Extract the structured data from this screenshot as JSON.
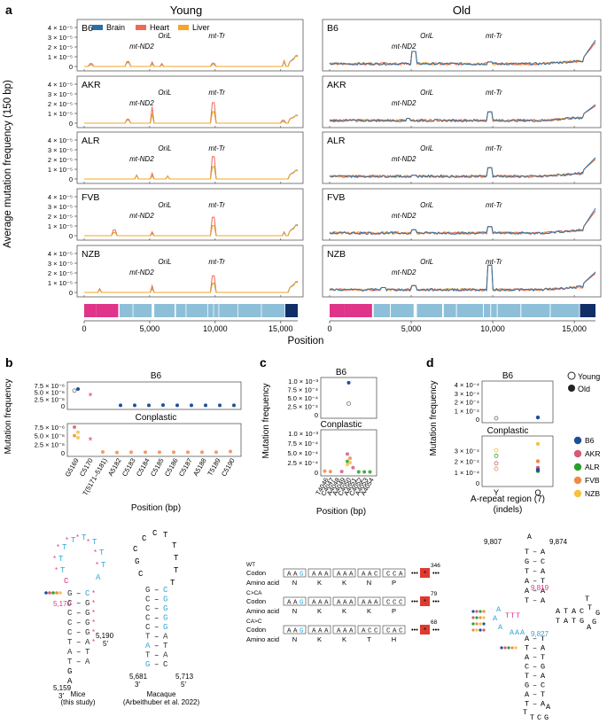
{
  "colors": {
    "brain": "#2e6fa3",
    "heart": "#ef6a55",
    "liver": "#f5a623",
    "pink": "#e0338a",
    "blue": "#8ebfd8",
    "navy": "#0f2f66",
    "cyan": "#33a6d6"
  },
  "panels": {
    "a": "a",
    "b": "b",
    "c": "c",
    "d": "d"
  },
  "panel_a": {
    "col_young": "Young",
    "col_old": "Old",
    "ylabel": "Average mutation frequency (150 bp)",
    "xlabel": "Position",
    "legend": [
      "Brain",
      "Heart",
      "Liver"
    ],
    "strains": [
      "B6",
      "AKR",
      "ALR",
      "FVB",
      "NZB"
    ],
    "landmarks": {
      "oril": "OriL",
      "mt_nd2": "mt-ND2",
      "mt_tr": "mt-Tr"
    }
  },
  "panel_b": {
    "title_top": "B6",
    "title_bottom": "Conplastic",
    "ylabel": "Mutation frequency",
    "xlabel": "Position (bp)"
  },
  "panel_c": {
    "title_top": "B6",
    "title_bottom": "Conplastic",
    "ylabel": "Mutation frequency",
    "xlabel": "Position (bp)"
  },
  "panel_d": {
    "title_top": "B6",
    "title_bottom": "Conplastic",
    "ylabel": "Mutation frequency",
    "xlabel_line1": "A-repeat region (7)",
    "xlabel_line2": "(indels)",
    "legend_young": "Young",
    "legend_old": "Old",
    "strain_legend": [
      {
        "name": "B6",
        "color": "#1f4e9a"
      },
      {
        "name": "AKR",
        "color": "#d65a76"
      },
      {
        "name": "ALR",
        "color": "#2aa02a"
      },
      {
        "name": "FVB",
        "color": "#f08a4b"
      },
      {
        "name": "NZB",
        "color": "#f5c242"
      }
    ]
  },
  "chart_data": [
    {
      "type": "line",
      "panel": "a",
      "title": "Average mutation frequency across mtDNA (Young / Old)",
      "xlabel": "Position",
      "ylabel": "Average mutation frequency (150 bp)",
      "xlim": [
        0,
        16300
      ],
      "xticks": [
        0,
        5000,
        10000,
        15000
      ],
      "xtick_labels": [
        "0",
        "5,000",
        "10,000",
        "15,000"
      ],
      "ylim": [
        0,
        4e-05
      ],
      "yticks": [
        0,
        1e-05,
        2e-05,
        3e-05,
        4e-05
      ],
      "ytick_labels": [
        "0",
        "1 × 10⁻⁵",
        "2 × 10⁻⁵",
        "3 × 10⁻⁵",
        "4 × 10⁻⁵"
      ],
      "series_names": [
        "Brain",
        "Heart",
        "Liver"
      ],
      "peaks": {
        "young": {
          "B6": [
            [
              500,
              0.3
            ],
            [
              3300,
              0.5
            ],
            [
              5180,
              0.45
            ],
            [
              5900,
              0.3
            ],
            [
              9830,
              0.35
            ],
            [
              15300,
              0.6
            ],
            [
              16150,
              1.1
            ]
          ],
          "AKR": [
            [
              3300,
              0.4
            ],
            [
              5180,
              1.7
            ],
            [
              9830,
              2.1
            ],
            [
              15200,
              0.3
            ],
            [
              16150,
              0.8
            ]
          ],
          "ALR": [
            [
              4000,
              0.4
            ],
            [
              5180,
              0.6
            ],
            [
              6400,
              0.3
            ],
            [
              9830,
              2.3
            ],
            [
              16150,
              0.9
            ]
          ],
          "FVB": [
            [
              2300,
              0.6
            ],
            [
              5180,
              0.4
            ],
            [
              9830,
              1.9
            ],
            [
              15300,
              0.4
            ],
            [
              16150,
              1.1
            ]
          ],
          "NZB": [
            [
              1200,
              0.4
            ],
            [
              5180,
              0.7
            ],
            [
              9830,
              1.7
            ],
            [
              16150,
              1.1
            ]
          ]
        },
        "old": {
          "B6": [
            [
              1000,
              0.4
            ],
            [
              5180,
              2.0
            ],
            [
              9830,
              0.6
            ],
            [
              14800,
              0.5
            ],
            [
              16150,
              2.1
            ]
          ],
          "AKR": [
            [
              4800,
              0.5
            ],
            [
              9830,
              1.5
            ],
            [
              14500,
              0.4
            ],
            [
              16150,
              1.3
            ]
          ],
          "ALR": [
            [
              5180,
              0.5
            ],
            [
              9830,
              1.5
            ],
            [
              15000,
              0.5
            ],
            [
              16150,
              1.6
            ]
          ],
          "FVB": [
            [
              5180,
              0.8
            ],
            [
              9830,
              1.2
            ],
            [
              15100,
              0.5
            ],
            [
              16150,
              2.2
            ]
          ],
          "NZB": [
            [
              3300,
              0.5
            ],
            [
              5180,
              0.9
            ],
            [
              9830,
              3.6
            ],
            [
              14500,
              0.7
            ],
            [
              16150,
              1.5
            ]
          ]
        }
      },
      "gene_track_segments": [
        {
          "start": 0,
          "end": 900,
          "kind": "pink"
        },
        {
          "start": 900,
          "end": 2600,
          "kind": "pink"
        },
        {
          "start": 2700,
          "end": 3700,
          "kind": "blue"
        },
        {
          "start": 3750,
          "end": 5150,
          "kind": "blue"
        },
        {
          "start": 5350,
          "end": 6900,
          "kind": "blue"
        },
        {
          "start": 7000,
          "end": 7750,
          "kind": "blue"
        },
        {
          "start": 7800,
          "end": 9400,
          "kind": "blue"
        },
        {
          "start": 9450,
          "end": 9850,
          "kind": "blue"
        },
        {
          "start": 9900,
          "end": 10250,
          "kind": "blue"
        },
        {
          "start": 10300,
          "end": 11700,
          "kind": "blue"
        },
        {
          "start": 11750,
          "end": 13500,
          "kind": "blue"
        },
        {
          "start": 13550,
          "end": 15300,
          "kind": "blue"
        },
        {
          "start": 15350,
          "end": 16300,
          "kind": "navy"
        }
      ]
    },
    {
      "type": "scatter",
      "panel": "b",
      "title": "B6 / Conplastic",
      "xlabel": "Position (bp)",
      "ylabel": "Mutation frequency",
      "categories": [
        "G5169",
        "C5170",
        "T(5171–5181)",
        "A5182",
        "C5183",
        "C5184",
        "C5185",
        "C5186",
        "C5187",
        "A5188",
        "T5189",
        "C5190"
      ],
      "ylim": [
        0,
        7.5e-06
      ],
      "ytick_labels": [
        "0",
        "2.5 × 10⁻⁶",
        "5.0 × 10⁻⁶",
        "7.5 × 10⁻⁶"
      ],
      "b6_old": [
        6.2e-06,
        null,
        null,
        2e-07,
        2e-07,
        2e-07,
        3e-07,
        2e-07,
        2e-07,
        2e-07,
        2e-07,
        2e-07
      ],
      "b6_young": [
        5.6e-06,
        null,
        null,
        null,
        null,
        null,
        null,
        null,
        null,
        null,
        null,
        null
      ],
      "star_category": "C5170",
      "conplastic_values": [
        [
          5e-06,
          6e-06,
          7.5e-06,
          4.4e-06
        ],
        null,
        [
          2.5e-07
        ],
        [
          1e-07
        ],
        [
          2e-07
        ],
        [
          2e-07
        ],
        [
          2e-07
        ],
        [
          2e-07
        ],
        [
          2e-07
        ],
        [
          2e-07
        ],
        [
          2e-07
        ],
        [
          4e-07
        ]
      ]
    },
    {
      "type": "scatter",
      "panel": "c",
      "title": "B6 / Conplastic",
      "xlabel": "Position (bp)",
      "ylabel": "Mutation frequency",
      "categories": [
        "T4046",
        "C4047",
        "A4048",
        "A4049",
        "C4050",
        "A4051",
        "C4052",
        "A4053",
        "A4054"
      ],
      "ylim": [
        0,
        0.001
      ],
      "ytick_labels": [
        "0",
        "2.5 × 10⁻⁴",
        "5.0 × 10⁻⁴",
        "7.5 × 10⁻⁴",
        "1.0 × 10⁻³"
      ],
      "b6_old": [
        null,
        null,
        null,
        null,
        0.00095,
        null,
        null,
        null,
        null
      ],
      "b6_young": [
        null,
        null,
        null,
        null,
        0.00033,
        null,
        null,
        null,
        null
      ],
      "conplastic_values": [
        [
          3e-05
        ],
        [
          2e-05
        ],
        null,
        [
          2e-05
        ],
        [
          0.00047,
          0.00036,
          0.00028,
          0.00025,
          0.0002
        ],
        [
          0.00012
        ],
        [
          1e-05
        ],
        [
          1e-05
        ],
        [
          1e-05
        ]
      ]
    },
    {
      "type": "scatter",
      "panel": "d",
      "title": "B6 / Conplastic",
      "xlabel": "A-repeat region (7) (indels)",
      "ylabel": "Mutation frequency",
      "categories": [
        "Y",
        "O"
      ],
      "ylim": [
        0,
        0.0004
      ],
      "ytick_labels": [
        "0",
        "1 × 10⁻⁴",
        "2 × 10⁻⁴",
        "3 × 10⁻⁴",
        "4 × 10⁻⁴"
      ],
      "b6": {
        "Y": 1e-05,
        "O": 2e-05
      },
      "conplastic": {
        "Y": {
          "AKR": 0.00018,
          "ALR": 0.00025,
          "FVB": 0.00013,
          "NZB": 0.0003
        },
        "O": {
          "AKR": 0.00014,
          "ALR": 0.00011,
          "FVB": 0.0002,
          "NZB": 0.00036,
          "B6": 0.00012
        }
      }
    }
  ],
  "bottom_left": {
    "mice_label": "Mice",
    "mice_sub": "(this study)",
    "macaque_label": "Macaque",
    "macaque_sub": "(Arbeithuber et al. 2022)",
    "pos_5170": "5,170",
    "pos_5190": "5,190",
    "pos_5159": "5,159",
    "pos_5681": "5,681",
    "pos_5713": "5,713",
    "end3": "3′",
    "end5": "5′"
  },
  "bottom_mid": {
    "rows": [
      {
        "tag": "WT",
        "codons": [
          "AAG",
          "AAA",
          "AAA",
          "AAC",
          "CCA"
        ],
        "aas": [
          "N",
          "K",
          "K",
          "N",
          "P"
        ],
        "count": "346"
      },
      {
        "tag": "C>CA",
        "codons": [
          "AAG",
          "AAA",
          "AAA",
          "AAA",
          "CCC"
        ],
        "aas": [
          "N",
          "K",
          "K",
          "K",
          "P"
        ],
        "count": "79"
      },
      {
        "tag": "CA>C",
        "codons": [
          "AAG",
          "AAA",
          "AAA",
          "ACC",
          "CAC"
        ],
        "aas": [
          "N",
          "K",
          "K",
          "T",
          "H"
        ],
        "count": "68"
      }
    ],
    "codon_label": "Codon",
    "aa_label": "Amino acid",
    "ellipsis": "•••",
    "stop": "*"
  },
  "bottom_right": {
    "pos_9807": "9,807",
    "pos_9874": "9,874",
    "pos_9819": "9,819",
    "pos_9827": "9,827"
  }
}
